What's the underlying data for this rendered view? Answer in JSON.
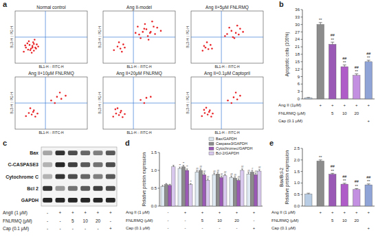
{
  "panel_labels": [
    "a",
    "b",
    "c",
    "d",
    "e"
  ],
  "chart_data": [
    {
      "type": "scatter",
      "title": "Normal control",
      "x_label": "BL1-H :: FITC-H",
      "y_label": "BL3-H :: PE-H",
      "xlim": [
        0,
        100
      ],
      "ylim": [
        0,
        100
      ],
      "tick_labels": false,
      "color": "#e8262a",
      "gate": {
        "x": 42,
        "y": 50
      },
      "x": [
        12,
        15,
        18,
        20,
        22,
        24,
        25,
        26,
        28,
        30,
        19,
        23,
        27,
        17,
        21,
        29,
        32,
        14,
        26,
        24
      ],
      "values": [
        22,
        30,
        26,
        35,
        28,
        33,
        40,
        24,
        30,
        36,
        42,
        20,
        45,
        38,
        25,
        28,
        32,
        34,
        37,
        30
      ]
    },
    {
      "type": "scatter",
      "title": "Ang II-model",
      "x_label": "BL1-H :: FITC-H",
      "y_label": "BL3-H :: PE-H",
      "xlim": [
        0,
        100
      ],
      "ylim": [
        0,
        100
      ],
      "tick_labels": false,
      "color": "#e8262a",
      "gate": {
        "x": 42,
        "y": 50
      },
      "x": [
        15,
        20,
        24,
        28,
        22,
        26,
        30,
        50,
        55,
        60,
        65,
        70,
        58,
        62,
        75,
        68,
        52,
        80,
        45,
        72,
        57,
        63,
        48,
        66
      ],
      "values": [
        25,
        32,
        28,
        36,
        40,
        22,
        30,
        55,
        60,
        65,
        58,
        70,
        75,
        52,
        68,
        80,
        48,
        62,
        58,
        56,
        66,
        45,
        70,
        60
      ]
    },
    {
      "type": "scatter",
      "title": "Ang II+5μM FNLRMQ",
      "x_label": "BL1-H :: FITC-H",
      "y_label": "BL3-H :: PE-H",
      "xlim": [
        0,
        100
      ],
      "ylim": [
        0,
        100
      ],
      "tick_labels": false,
      "color": "#e8262a",
      "gate": {
        "x": 42,
        "y": 50
      },
      "x": [
        16,
        20,
        24,
        27,
        22,
        29,
        18,
        50,
        56,
        62,
        68,
        58,
        64,
        72,
        53,
        47,
        60,
        66
      ],
      "values": [
        24,
        30,
        27,
        35,
        40,
        28,
        33,
        56,
        62,
        58,
        66,
        50,
        72,
        60,
        68,
        52,
        48,
        55
      ]
    },
    {
      "type": "scatter",
      "title": "Ang II+10μM FNLRMQ",
      "x_label": "BL1-H :: FITC-H",
      "y_label": "BL3-H :: PE-H",
      "xlim": [
        0,
        100
      ],
      "ylim": [
        0,
        100
      ],
      "tick_labels": false,
      "color": "#e8262a",
      "gate": {
        "x": 42,
        "y": 50
      },
      "x": [
        15,
        19,
        23,
        26,
        21,
        28,
        25,
        31,
        50,
        58,
        64,
        55,
        70,
        62
      ],
      "values": [
        25,
        31,
        28,
        36,
        40,
        24,
        33,
        30,
        55,
        62,
        58,
        50,
        64,
        70
      ]
    },
    {
      "type": "scatter",
      "title": "Ang II+20μM FNLRMQ",
      "x_label": "BL1-H :: FITC-H",
      "y_label": "BL3-H :: PE-H",
      "xlim": [
        0,
        100
      ],
      "ylim": [
        0,
        100
      ],
      "tick_labels": false,
      "color": "#e8262a",
      "gate": {
        "x": 42,
        "y": 50
      },
      "x": [
        14,
        18,
        22,
        25,
        20,
        27,
        24,
        30,
        17,
        52,
        60,
        57,
        66
      ],
      "values": [
        24,
        30,
        27,
        35,
        40,
        23,
        32,
        29,
        38,
        56,
        60,
        50,
        62
      ]
    },
    {
      "type": "scatter",
      "title": "Ang II+0.1μM Captopril",
      "x_label": "BL1-H :: FITC-H",
      "y_label": "BL3-H :: PE-H",
      "xlim": [
        0,
        100
      ],
      "ylim": [
        0,
        100
      ],
      "tick_labels": false,
      "color": "#e8262a",
      "gate": {
        "x": 42,
        "y": 50
      },
      "x": [
        15,
        19,
        23,
        26,
        21,
        28,
        25,
        30,
        18,
        51,
        59,
        64,
        56,
        68,
        62
      ],
      "values": [
        25,
        31,
        28,
        36,
        41,
        24,
        33,
        30,
        37,
        55,
        61,
        57,
        50,
        64,
        70
      ]
    },
    {
      "type": "bar",
      "y_label": [
        "Apoptotic cells (100%)"
      ],
      "ylim": [
        0,
        36
      ],
      "yticks": [
        0,
        3,
        6,
        9,
        12,
        15,
        18,
        21,
        24,
        27,
        30,
        33,
        36
      ],
      "grid": false,
      "values": [
        0.4,
        30,
        22,
        13,
        9.5,
        15
      ],
      "errors": [
        0.2,
        0.8,
        0.9,
        0.7,
        0.6,
        0.6
      ],
      "colors": [
        "#b8cce4",
        "#8c8c8c",
        "#9b59b6",
        "#b05cc8",
        "#c38fe0",
        "#8fa3d6"
      ],
      "annotations": [
        [],
        [
          "**"
        ],
        [
          "**",
          "##"
        ],
        [
          "**",
          "##"
        ],
        [
          "**",
          "##"
        ],
        [
          "**",
          "##"
        ]
      ],
      "treatments": {
        "rows": [
          {
            "label": "Ang II (1μM)",
            "values": [
              null,
              "+",
              "+",
              "+",
              "+",
              "+"
            ]
          },
          {
            "label": "FNLRMQ (μM)",
            "values": [
              null,
              null,
              "5",
              "10",
              "20",
              null
            ]
          },
          {
            "label": "Cap (0.1 μM)",
            "values": [
              null,
              null,
              null,
              null,
              null,
              "+"
            ]
          }
        ]
      }
    },
    {
      "type": "bar",
      "y_label": [
        "Relative protein expression"
      ],
      "ylim": [
        0,
        1.5
      ],
      "yticks": [
        {
          "value": 0,
          "label": "0.0"
        },
        {
          "value": 0.5,
          "label": "0.5"
        },
        {
          "value": 1,
          "label": "1.0"
        },
        {
          "value": 1.5,
          "label": "1.5"
        }
      ],
      "grid": false,
      "legend": "top-right",
      "series": [
        {
          "name": "Bax/GAPDH",
          "color": "#dde8f0",
          "values": [
            0.55,
            1.05,
            0.95,
            0.88,
            0.8,
            0.9
          ],
          "errors": [
            0.03,
            0.04,
            0.04,
            0.04,
            0.04,
            0.04
          ],
          "annotations": [
            [],
            [
              "**"
            ],
            [
              "##"
            ],
            [
              "##"
            ],
            [
              "##"
            ],
            [
              "##"
            ]
          ]
        },
        {
          "name": "Caspase3/GAPDH",
          "color": "#8c8c8c",
          "values": [
            0.6,
            1.1,
            1.0,
            0.9,
            0.78,
            0.95
          ],
          "errors": [
            0.03,
            0.04,
            0.04,
            0.04,
            0.04,
            0.04
          ],
          "annotations": [
            [],
            [
              "**"
            ],
            [
              "##"
            ],
            [
              "##"
            ],
            [
              "##"
            ],
            [
              "#"
            ]
          ]
        },
        {
          "name": "Cytochromec/GAPDH",
          "color": "#9b59b6",
          "values": [
            0.58,
            1.0,
            0.88,
            0.8,
            0.72,
            0.88
          ],
          "errors": [
            0.03,
            0.04,
            0.04,
            0.04,
            0.04,
            0.04
          ],
          "annotations": [
            [],
            [
              "**"
            ],
            [
              "##"
            ],
            [
              "##"
            ],
            [
              "##"
            ],
            [
              "##"
            ]
          ]
        },
        {
          "name": "Bcl-2/GAPDH",
          "color": "#d9c8ee",
          "values": [
            1.1,
            0.6,
            0.72,
            0.85,
            1.0,
            0.98
          ],
          "errors": [
            0.04,
            0.03,
            0.04,
            0.04,
            0.04,
            0.04
          ],
          "annotations": [
            [],
            [
              "**"
            ],
            [
              "##"
            ],
            [
              "##"
            ],
            [
              "##"
            ],
            [
              "##"
            ]
          ]
        }
      ],
      "treatments": {
        "rows": [
          {
            "label": "Ang II (1 μM)",
            "values": [
              "-",
              "+",
              "+",
              "+",
              "+",
              "+"
            ]
          },
          {
            "label": "FNLRMQ (μM)",
            "values": [
              "-",
              "-",
              "5",
              "10",
              "20",
              "-"
            ]
          },
          {
            "label": "Cap (0.1 μM)",
            "values": [
              "-",
              "-",
              "-",
              "-",
              "-",
              "+"
            ]
          }
        ]
      }
    },
    {
      "type": "bar",
      "y_label": [
        "Bax/Bcl-2",
        "Relative protein expression"
      ],
      "ylim": [
        0,
        2.5
      ],
      "yticks": [
        {
          "value": 0,
          "label": "0.0"
        },
        {
          "value": 0.5,
          "label": "0.5"
        },
        {
          "value": 1,
          "label": "1.0"
        },
        {
          "value": 1.5,
          "label": "1.5"
        },
        {
          "value": 2,
          "label": "2.0"
        },
        {
          "value": 2.5,
          "label": "2.5"
        }
      ],
      "grid": false,
      "values": [
        0.52,
        1.95,
        1.38,
        0.95,
        0.72,
        0.92
      ],
      "errors": [
        0.04,
        0.05,
        0.04,
        0.04,
        0.04,
        0.04
      ],
      "colors": [
        "#b8cce4",
        "#8c8c8c",
        "#9b59b6",
        "#b05cc8",
        "#c38fe0",
        "#8fa3d6"
      ],
      "annotations": [
        [],
        [
          "**"
        ],
        [
          "**",
          "##"
        ],
        [
          "**",
          "##"
        ],
        [
          "**",
          "##"
        ],
        [
          "**",
          "##"
        ]
      ],
      "treatments": {
        "rows": [
          {
            "label": "Ang II (1 μM)",
            "values": [
              null,
              "+",
              "+",
              "+",
              "+",
              "+"
            ]
          },
          {
            "label": "FNLRMQ (μM)",
            "values": [
              null,
              null,
              "5",
              "10",
              "20",
              null
            ]
          },
          {
            "label": "Cap (0.1 μM)",
            "values": [
              null,
              null,
              null,
              null,
              null,
              "+"
            ]
          }
        ]
      }
    }
  ],
  "blot": {
    "rows": [
      {
        "label": "Bax",
        "bands": [
          0.35,
          0.8,
          0.7,
          0.6,
          0.5,
          0.65
        ]
      },
      {
        "label": "C-CASPASE3",
        "bands": [
          0.3,
          0.85,
          0.75,
          0.65,
          0.55,
          0.7
        ]
      },
      {
        "label": "Cytochrome C",
        "bands": [
          0.3,
          0.8,
          0.7,
          0.6,
          0.5,
          0.65
        ]
      },
      {
        "label": "Bcl 2",
        "bands": [
          0.8,
          0.4,
          0.55,
          0.65,
          0.75,
          0.7
        ]
      },
      {
        "label": "GAPDH",
        "bands": [
          0.85,
          0.85,
          0.85,
          0.85,
          0.85,
          0.85
        ]
      }
    ],
    "treatments": {
      "rows": [
        {
          "label": "AngII (1 μM)",
          "values": [
            "-",
            "+",
            "+",
            "+",
            "+",
            "+"
          ]
        },
        {
          "label": "FNLRMQ (μM)",
          "values": [
            "-",
            "-",
            "5",
            "10",
            "20",
            "-"
          ]
        },
        {
          "label": "Cap (0.1 μM)",
          "values": [
            "-",
            "-",
            "-",
            "-",
            "-",
            "+"
          ]
        }
      ]
    }
  }
}
